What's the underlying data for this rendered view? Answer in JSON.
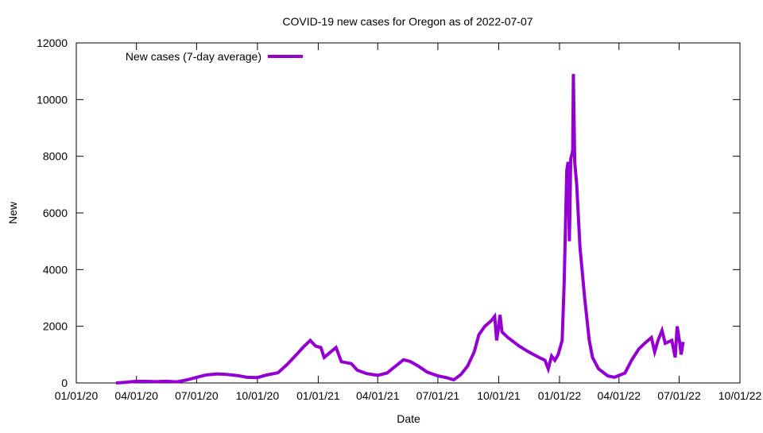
{
  "chart_data": {
    "type": "line",
    "title": "COVID-19 new cases for Oregon as of 2022-07-07",
    "xlabel": "Date",
    "ylabel": "New",
    "xlim": [
      "2020-01-01",
      "2022-10-01"
    ],
    "ylim": [
      0,
      12000
    ],
    "grid": false,
    "legend_position": "top-left",
    "x_ticks": [
      {
        "date": "2020-01-01",
        "label": "01/01/20"
      },
      {
        "date": "2020-04-01",
        "label": "04/01/20"
      },
      {
        "date": "2020-07-01",
        "label": "07/01/20"
      },
      {
        "date": "2020-10-01",
        "label": "10/01/20"
      },
      {
        "date": "2021-01-01",
        "label": "01/01/21"
      },
      {
        "date": "2021-04-01",
        "label": "04/01/21"
      },
      {
        "date": "2021-07-01",
        "label": "07/01/21"
      },
      {
        "date": "2021-10-01",
        "label": "10/01/21"
      },
      {
        "date": "2022-01-01",
        "label": "01/01/22"
      },
      {
        "date": "2022-04-01",
        "label": "04/01/22"
      },
      {
        "date": "2022-07-01",
        "label": "07/01/22"
      },
      {
        "date": "2022-10-01",
        "label": "10/01/22"
      }
    ],
    "y_ticks": [
      0,
      2000,
      4000,
      6000,
      8000,
      10000,
      12000
    ],
    "series": [
      {
        "name": "New cases (7-day average)",
        "color": "#9400d3",
        "points": [
          [
            "2020-03-01",
            0
          ],
          [
            "2020-03-15",
            20
          ],
          [
            "2020-04-01",
            60
          ],
          [
            "2020-04-15",
            55
          ],
          [
            "2020-05-01",
            45
          ],
          [
            "2020-05-15",
            60
          ],
          [
            "2020-06-01",
            40
          ],
          [
            "2020-06-15",
            100
          ],
          [
            "2020-07-01",
            200
          ],
          [
            "2020-07-15",
            280
          ],
          [
            "2020-08-01",
            320
          ],
          [
            "2020-08-15",
            300
          ],
          [
            "2020-09-01",
            260
          ],
          [
            "2020-09-15",
            200
          ],
          [
            "2020-10-01",
            190
          ],
          [
            "2020-10-15",
            280
          ],
          [
            "2020-11-01",
            360
          ],
          [
            "2020-11-15",
            650
          ],
          [
            "2020-12-01",
            1050
          ],
          [
            "2020-12-10",
            1280
          ],
          [
            "2020-12-20",
            1500
          ],
          [
            "2020-12-28",
            1300
          ],
          [
            "2021-01-05",
            1250
          ],
          [
            "2021-01-10",
            900
          ],
          [
            "2021-01-20",
            1100
          ],
          [
            "2021-01-28",
            1250
          ],
          [
            "2021-02-05",
            750
          ],
          [
            "2021-02-20",
            680
          ],
          [
            "2021-03-01",
            450
          ],
          [
            "2021-03-15",
            330
          ],
          [
            "2021-04-01",
            270
          ],
          [
            "2021-04-15",
            350
          ],
          [
            "2021-05-01",
            650
          ],
          [
            "2021-05-10",
            820
          ],
          [
            "2021-05-20",
            760
          ],
          [
            "2021-06-01",
            600
          ],
          [
            "2021-06-15",
            380
          ],
          [
            "2021-07-01",
            250
          ],
          [
            "2021-07-15",
            180
          ],
          [
            "2021-07-25",
            110
          ],
          [
            "2021-08-05",
            300
          ],
          [
            "2021-08-15",
            600
          ],
          [
            "2021-08-25",
            1100
          ],
          [
            "2021-09-01",
            1700
          ],
          [
            "2021-09-10",
            2000
          ],
          [
            "2021-09-20",
            2200
          ],
          [
            "2021-09-25",
            2350
          ],
          [
            "2021-09-28",
            1500
          ],
          [
            "2021-10-01",
            2000
          ],
          [
            "2021-10-03",
            2400
          ],
          [
            "2021-10-06",
            1800
          ],
          [
            "2021-10-15",
            1600
          ],
          [
            "2021-11-01",
            1300
          ],
          [
            "2021-11-15",
            1100
          ],
          [
            "2021-12-01",
            900
          ],
          [
            "2021-12-10",
            800
          ],
          [
            "2021-12-15",
            500
          ],
          [
            "2021-12-20",
            950
          ],
          [
            "2021-12-25",
            800
          ],
          [
            "2021-12-30",
            1000
          ],
          [
            "2022-01-05",
            1500
          ],
          [
            "2022-01-08",
            3500
          ],
          [
            "2022-01-12",
            7500
          ],
          [
            "2022-01-14",
            7800
          ],
          [
            "2022-01-16",
            5000
          ],
          [
            "2022-01-18",
            7900
          ],
          [
            "2022-01-21",
            8200
          ],
          [
            "2022-01-22",
            10900
          ],
          [
            "2022-01-24",
            7800
          ],
          [
            "2022-01-27",
            7000
          ],
          [
            "2022-02-01",
            4800
          ],
          [
            "2022-02-08",
            3000
          ],
          [
            "2022-02-15",
            1500
          ],
          [
            "2022-02-20",
            900
          ],
          [
            "2022-03-01",
            500
          ],
          [
            "2022-03-15",
            250
          ],
          [
            "2022-03-25",
            200
          ],
          [
            "2022-04-10",
            350
          ],
          [
            "2022-04-20",
            800
          ],
          [
            "2022-05-01",
            1200
          ],
          [
            "2022-05-10",
            1400
          ],
          [
            "2022-05-20",
            1600
          ],
          [
            "2022-05-25",
            1100
          ],
          [
            "2022-05-30",
            1500
          ],
          [
            "2022-06-05",
            1850
          ],
          [
            "2022-06-10",
            1400
          ],
          [
            "2022-06-20",
            1500
          ],
          [
            "2022-06-25",
            900
          ],
          [
            "2022-06-28",
            2000
          ],
          [
            "2022-07-02",
            1400
          ],
          [
            "2022-07-04",
            1000
          ],
          [
            "2022-07-07",
            1450
          ]
        ]
      }
    ]
  }
}
